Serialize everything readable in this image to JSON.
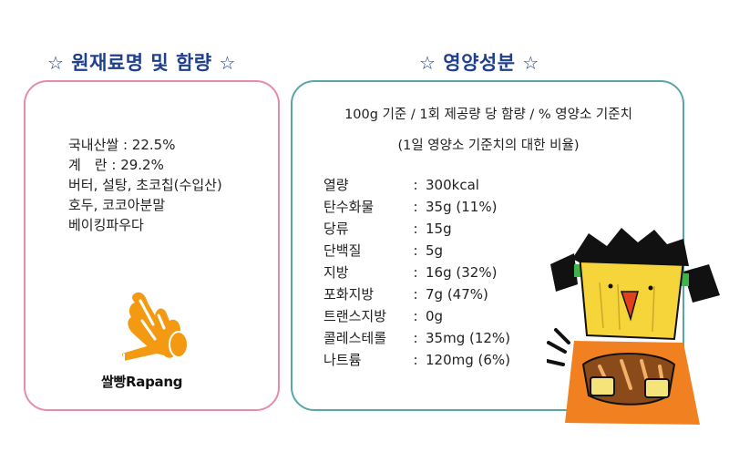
{
  "headings": {
    "ingredients": "원재료명 및 함량",
    "nutrition": "영양성분",
    "star": "☆"
  },
  "ingredients": [
    "국내산쌀 : 22.5%",
    "계　란 : 29.2%",
    "버터, 설탕, 초코칩(수입산)",
    "호두, 코코아분말",
    "베이킹파우다"
  ],
  "brand": {
    "name": "쌀빵Rapang",
    "logo_icon": "hand-and-horn-icon"
  },
  "nutrition": {
    "basis_line1": "100g 기준 / 1회 제공량 당 함량 / % 영양소 기준치",
    "basis_line2": "(1일 영양소 기준치의 대한 비율)",
    "colon": ":",
    "rows": [
      {
        "name": "열량",
        "value": "300kcal"
      },
      {
        "name": "탄수화물",
        "value": "35g (11%)"
      },
      {
        "name": "당류",
        "value": "15g"
      },
      {
        "name": "단백질",
        "value": "5g"
      },
      {
        "name": "지방",
        "value": "16g (32%)"
      },
      {
        "name": "포화지방",
        "value": "7g (47%)"
      },
      {
        "name": "트랜스지방",
        "value": "0g"
      },
      {
        "name": "콜레스테롤",
        "value": "35mg (12%)"
      },
      {
        "name": "나트륨",
        "value": "120mg (6%)"
      }
    ]
  },
  "mascot": {
    "icon": "girl-holding-bread-icon"
  },
  "colors": {
    "heading": "#1f3f8f",
    "left_border": "#e98aa8",
    "right_border": "#5aa5a8",
    "logo_orange": "#f39a12",
    "mascot_orange": "#f08020"
  }
}
